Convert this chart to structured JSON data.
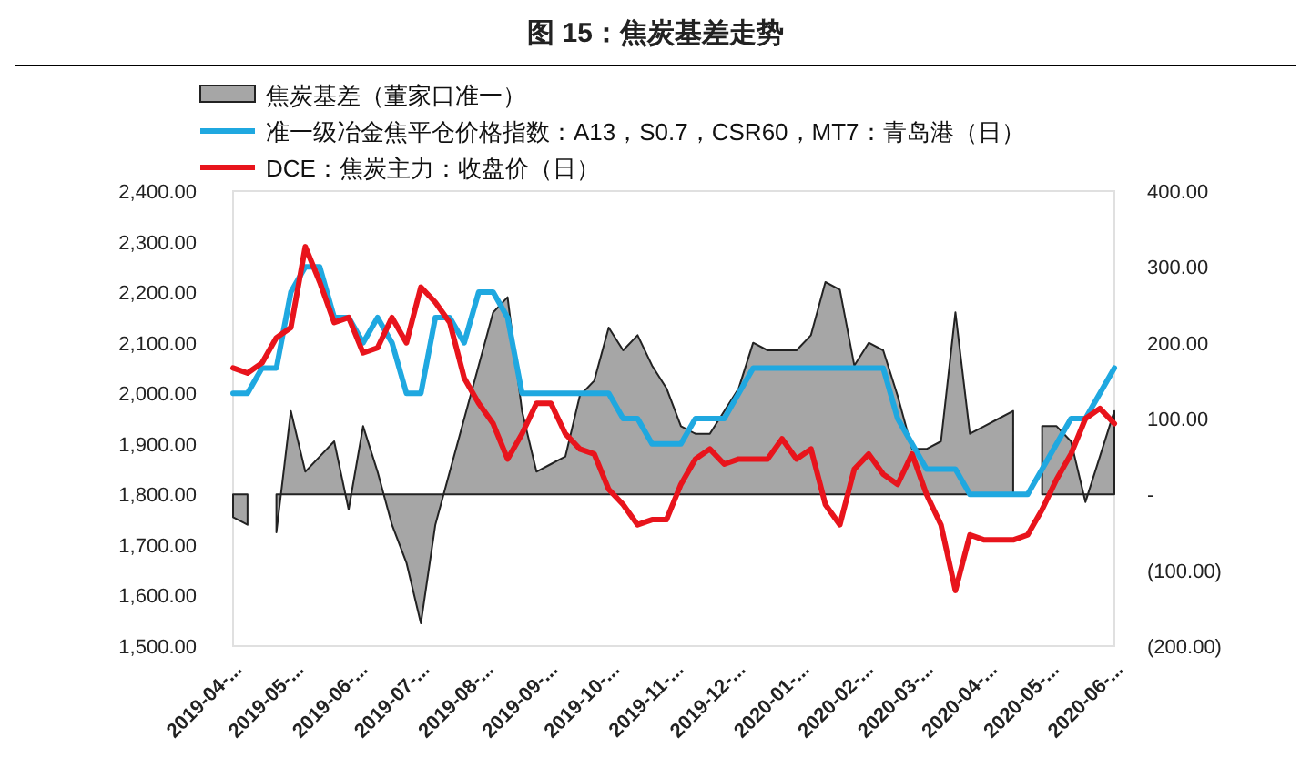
{
  "chart_data": {
    "type": "line",
    "title": "图 15：焦炭基差走势",
    "legend": "top left",
    "grid": false,
    "x": [
      "2019-04-01",
      "2019-04-08",
      "2019-04-15",
      "2019-04-22",
      "2019-04-29",
      "2019-05-06",
      "2019-05-13",
      "2019-05-20",
      "2019-05-27",
      "2019-06-03",
      "2019-06-10",
      "2019-06-17",
      "2019-06-24",
      "2019-07-01",
      "2019-07-08",
      "2019-07-15",
      "2019-07-22",
      "2019-07-29",
      "2019-08-05",
      "2019-08-12",
      "2019-08-19",
      "2019-08-26",
      "2019-09-02",
      "2019-09-09",
      "2019-09-16",
      "2019-09-23",
      "2019-09-30",
      "2019-10-07",
      "2019-10-14",
      "2019-10-21",
      "2019-10-28",
      "2019-11-04",
      "2019-11-11",
      "2019-11-18",
      "2019-11-25",
      "2019-12-02",
      "2019-12-09",
      "2019-12-16",
      "2019-12-23",
      "2019-12-30",
      "2020-01-06",
      "2020-01-13",
      "2020-01-20",
      "2020-01-27",
      "2020-02-03",
      "2020-02-10",
      "2020-02-17",
      "2020-02-24",
      "2020-03-02",
      "2020-03-09",
      "2020-03-16",
      "2020-03-23",
      "2020-03-30",
      "2020-04-06",
      "2020-04-13",
      "2020-04-20",
      "2020-04-27",
      "2020-05-04",
      "2020-05-11",
      "2020-05-18",
      "2020-05-25",
      "2020-06-01"
    ],
    "series": [
      {
        "name": "焦炭基差（董家口准一）",
        "type": "area",
        "axis": "y2",
        "color": "#a6a6a6",
        "values": [
          -30,
          -40,
          null,
          -50,
          110,
          30,
          50,
          70,
          -20,
          90,
          30,
          -40,
          -90,
          -170,
          -40,
          30,
          100,
          170,
          240,
          260,
          110,
          30,
          40,
          50,
          130,
          150,
          220,
          190,
          210,
          170,
          140,
          90,
          80,
          80,
          110,
          140,
          200,
          190,
          190,
          190,
          210,
          280,
          270,
          170,
          200,
          190,
          130,
          60,
          60,
          70,
          240,
          80,
          90,
          100,
          110,
          null,
          90,
          90,
          70,
          -10,
          50,
          110
        ]
      },
      {
        "name": "准一级冶金焦平仓价格指数：A13，S0.7，CSR60，MT7：青岛港（日）",
        "color": "#1fa8e0",
        "values": [
          2000,
          2000,
          2050,
          2050,
          2200,
          2250,
          2250,
          2150,
          2150,
          2100,
          2150,
          2100,
          2000,
          2000,
          2150,
          2150,
          2100,
          2200,
          2200,
          2150,
          2000,
          2000,
          2000,
          2000,
          2000,
          2000,
          2000,
          1950,
          1950,
          1900,
          1900,
          1900,
          1950,
          1950,
          1950,
          2000,
          2050,
          2050,
          2050,
          2050,
          2050,
          2050,
          2050,
          2050,
          2050,
          2050,
          1950,
          1900,
          1850,
          1850,
          1850,
          1800,
          1800,
          1800,
          1800,
          1800,
          1850,
          1900,
          1950,
          1950,
          2000,
          2050
        ]
      },
      {
        "name": "DCE：焦炭主力：收盘价（日）",
        "color": "#e8141c",
        "values": [
          2050,
          2040,
          2060,
          2110,
          2130,
          2290,
          2220,
          2140,
          2150,
          2080,
          2090,
          2150,
          2100,
          2210,
          2180,
          2140,
          2030,
          1980,
          1940,
          1870,
          1920,
          1980,
          1980,
          1920,
          1890,
          1880,
          1810,
          1780,
          1740,
          1750,
          1750,
          1820,
          1870,
          1890,
          1860,
          1870,
          1870,
          1870,
          1910,
          1870,
          1890,
          1780,
          1740,
          1850,
          1880,
          1840,
          1820,
          1880,
          1800,
          1740,
          1610,
          1720,
          1710,
          1710,
          1710,
          1720,
          1770,
          1830,
          1880,
          1950,
          1970,
          1940
        ]
      }
    ],
    "ylim": [
      1500,
      2400
    ],
    "yticks": [
      {
        "value": 1500,
        "label": "1,500.00"
      },
      {
        "value": 1600,
        "label": "1,600.00"
      },
      {
        "value": 1700,
        "label": "1,700.00"
      },
      {
        "value": 1800,
        "label": "1,800.00"
      },
      {
        "value": 1900,
        "label": "1,900.00"
      },
      {
        "value": 2000,
        "label": "2,000.00"
      },
      {
        "value": 2100,
        "label": "2,100.00"
      },
      {
        "value": 2200,
        "label": "2,200.00"
      },
      {
        "value": 2300,
        "label": "2,300.00"
      },
      {
        "value": 2400,
        "label": "2,400.00"
      }
    ],
    "y2lim": [
      -200,
      400
    ],
    "y2ticks": [
      {
        "value": -200,
        "label": "(200.00)"
      },
      {
        "value": -100,
        "label": "(100.00)"
      },
      {
        "value": 0,
        "label": "-"
      },
      {
        "value": 100,
        "label": "100.00"
      },
      {
        "value": 200,
        "label": "200.00"
      },
      {
        "value": 300,
        "label": "300.00"
      },
      {
        "value": 400,
        "label": "400.00"
      }
    ],
    "xlim": [
      "2019-04-01",
      "2020-06-01"
    ],
    "xticks": [
      {
        "value": "2019-04-01",
        "label": "2019-04-..."
      },
      {
        "value": "2019-05-01",
        "label": "2019-05-..."
      },
      {
        "value": "2019-06-01",
        "label": "2019-06-..."
      },
      {
        "value": "2019-07-01",
        "label": "2019-07-..."
      },
      {
        "value": "2019-08-01",
        "label": "2019-08-..."
      },
      {
        "value": "2019-09-01",
        "label": "2019-09-..."
      },
      {
        "value": "2019-10-01",
        "label": "2019-10-..."
      },
      {
        "value": "2019-11-01",
        "label": "2019-11-..."
      },
      {
        "value": "2019-12-01",
        "label": "2019-12-..."
      },
      {
        "value": "2020-01-01",
        "label": "2020-01-..."
      },
      {
        "value": "2020-02-01",
        "label": "2020-02-..."
      },
      {
        "value": "2020-03-01",
        "label": "2020-03-..."
      },
      {
        "value": "2020-04-01",
        "label": "2020-04-..."
      },
      {
        "value": "2020-05-01",
        "label": "2020-05-..."
      },
      {
        "value": "2020-06-01",
        "label": "2020-06-..."
      }
    ]
  }
}
